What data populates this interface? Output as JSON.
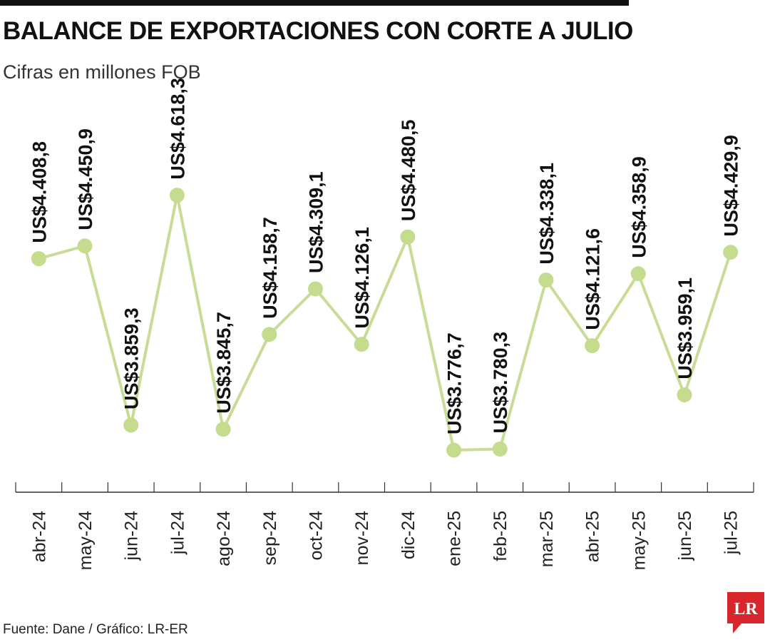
{
  "header": {
    "title": "BALANCE DE EXPORTACIONES CON CORTE A JULIO",
    "subtitle": "Cifras en millones FOB"
  },
  "footer": {
    "source": "Fuente: Dane / Gráfico: LR-ER",
    "logo_text": "LR"
  },
  "colors": {
    "line": "#c8dc96",
    "point": "#c5dc8e",
    "axis": "#333333",
    "logo": "#d7262c"
  },
  "chart_data": {
    "type": "line",
    "categories": [
      "abr-24",
      "may-24",
      "jun-24",
      "jul-24",
      "ago-24",
      "sep-24",
      "oct-24",
      "nov-24",
      "dic-24",
      "ene-25",
      "feb-25",
      "mar-25",
      "abr-25",
      "may-25",
      "jun-25",
      "jul-25"
    ],
    "values": [
      4408.8,
      4450.9,
      3859.3,
      4618.3,
      3845.7,
      4158.7,
      4309.1,
      4126.1,
      4480.5,
      3776.7,
      3780.3,
      4338.1,
      4121.6,
      4358.9,
      3959.1,
      4429.9
    ],
    "data_labels": [
      "US$4.408,8",
      "US$4.450,9",
      "US$3.859,3",
      "US$4.618,3",
      "US$3.845,7",
      "US$4.158,7",
      "US$4.309,1",
      "US$4.126,1",
      "US$4.480,5",
      "US$3.776,7",
      "US$3.780,3",
      "US$4.338,1",
      "US$4.121,6",
      "US$4.358,9",
      "US$3.959,1",
      "US$4.429,9"
    ],
    "ylim": [
      3480,
      4780
    ],
    "grid": false,
    "legend": "none"
  }
}
